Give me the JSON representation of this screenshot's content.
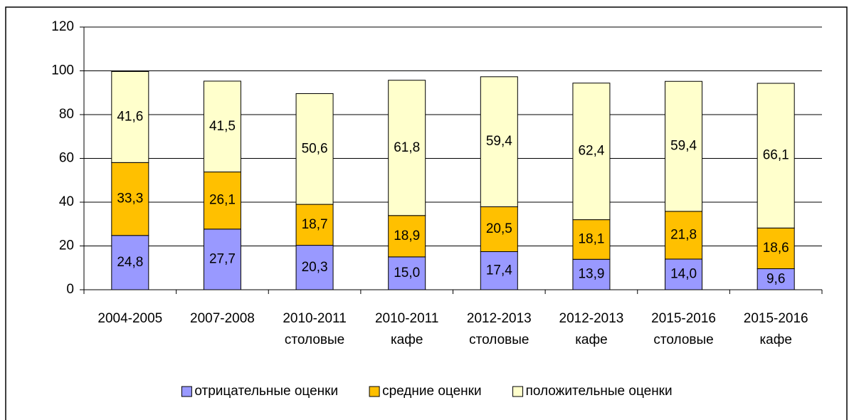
{
  "chart_data": {
    "type": "stacked_bar",
    "categories": [
      "2004-2005",
      "2007-2008",
      "2010-2011\nстоловые",
      "2010-2011\nкафе",
      "2012-2013\nстоловые",
      "2012-2013\nкафе",
      "2015-2016\nстоловые",
      "2015-2016\nкафе"
    ],
    "series": [
      {
        "name": "отрицательные оценки",
        "color": "#9999ff",
        "values": [
          24.8,
          27.7,
          20.3,
          15.0,
          17.4,
          13.9,
          14.0,
          9.6
        ],
        "value_labels": [
          "24,8",
          "27,7",
          "20,3",
          "15,0",
          "17,4",
          "13,9",
          "14,0",
          "9,6"
        ]
      },
      {
        "name": "средние оценки",
        "color": "#ffc000",
        "values": [
          33.3,
          26.1,
          18.7,
          18.9,
          20.5,
          18.1,
          21.8,
          18.6
        ],
        "value_labels": [
          "33,3",
          "26,1",
          "18,7",
          "18,9",
          "20,5",
          "18,1",
          "21,8",
          "18,6"
        ]
      },
      {
        "name": "положительные оценки",
        "color": "#ffffcc",
        "values": [
          41.6,
          41.5,
          50.6,
          61.8,
          59.4,
          62.4,
          59.4,
          66.1
        ],
        "value_labels": [
          "41,6",
          "41,5",
          "50,6",
          "61,8",
          "59,4",
          "62,4",
          "59,4",
          "66,1"
        ]
      }
    ],
    "ylim": [
      0,
      120
    ],
    "yticks": [
      0,
      20,
      40,
      60,
      80,
      100,
      120
    ],
    "grid": true,
    "legend": "bottom"
  }
}
